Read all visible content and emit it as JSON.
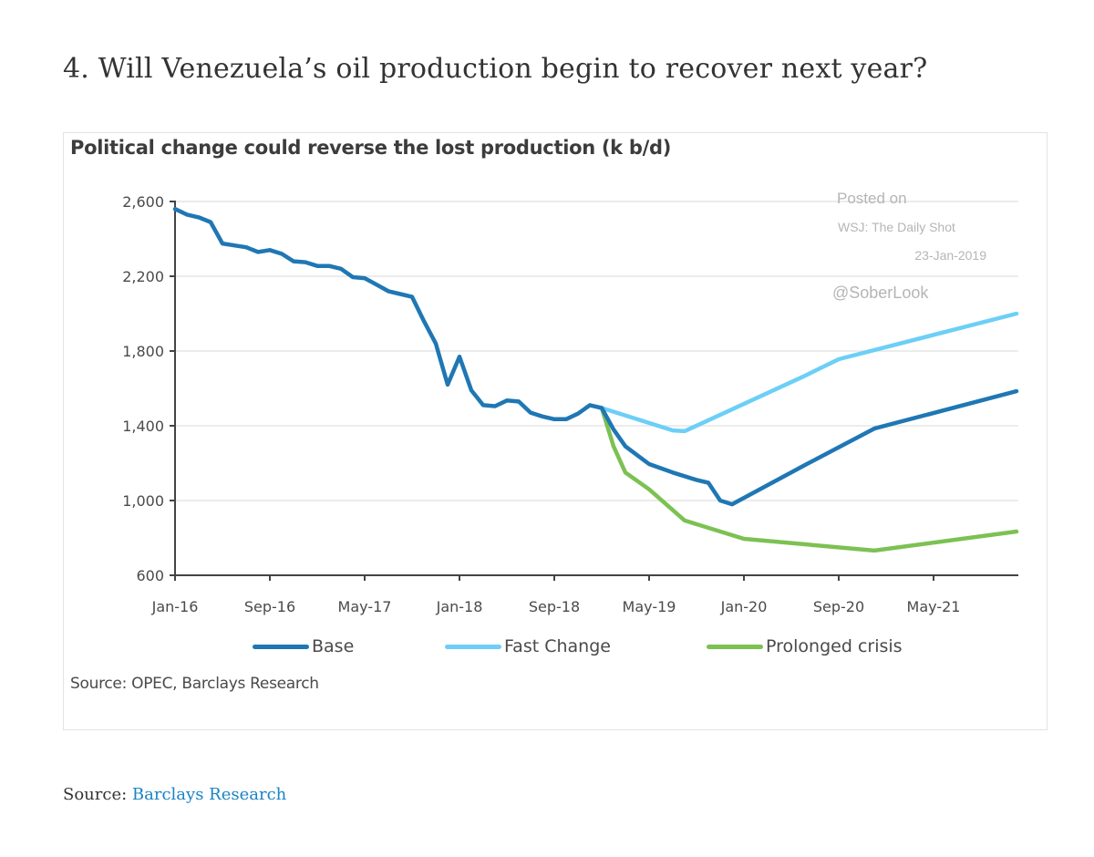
{
  "page": {
    "heading": "4. Will Venezuela’s oil production begin to recover next year?",
    "source_prefix": "Source:",
    "source_link": "Barclays Research"
  },
  "watermark": {
    "line1": "Posted on",
    "line2": "WSJ: The Daily Shot",
    "line3": "23-Jan-2019",
    "line4": "@SoberLook"
  },
  "chart_data": {
    "type": "line",
    "title": "Political change could reverse the lost production (k b/d)",
    "xlabel": "",
    "ylabel": "",
    "source": "Source: OPEC, Barclays Research",
    "x_start": "Jan-16",
    "x_unit": "month",
    "x_range_months": [
      0,
      71
    ],
    "x_ticks": [
      {
        "m": 0,
        "label": "Jan-16"
      },
      {
        "m": 8,
        "label": "Sep-16"
      },
      {
        "m": 16,
        "label": "May-17"
      },
      {
        "m": 24,
        "label": "Jan-18"
      },
      {
        "m": 32,
        "label": "Sep-18"
      },
      {
        "m": 40,
        "label": "May-19"
      },
      {
        "m": 48,
        "label": "Jan-20"
      },
      {
        "m": 56,
        "label": "Sep-20"
      },
      {
        "m": 64,
        "label": "May-21"
      }
    ],
    "ylim": [
      600,
      2600
    ],
    "y_ticks": [
      {
        "v": 600,
        "label": "600"
      },
      {
        "v": 1000,
        "label": "1,000"
      },
      {
        "v": 1400,
        "label": "1,400"
      },
      {
        "v": 1800,
        "label": "1,800"
      },
      {
        "v": 2200,
        "label": "2,200"
      },
      {
        "v": 2600,
        "label": "2,600"
      }
    ],
    "grid": true,
    "legend_position": "bottom",
    "series": [
      {
        "name": "Base",
        "color": "#1f77b4",
        "points": [
          [
            0,
            2560
          ],
          [
            1,
            2530
          ],
          [
            2,
            2515
          ],
          [
            3,
            2490
          ],
          [
            4,
            2375
          ],
          [
            5,
            2365
          ],
          [
            6,
            2355
          ],
          [
            7,
            2330
          ],
          [
            8,
            2340
          ],
          [
            9,
            2320
          ],
          [
            10,
            2280
          ],
          [
            11,
            2275
          ],
          [
            12,
            2255
          ],
          [
            13,
            2255
          ],
          [
            14,
            2240
          ],
          [
            15,
            2195
          ],
          [
            16,
            2190
          ],
          [
            17,
            2155
          ],
          [
            18,
            2120
          ],
          [
            19,
            2105
          ],
          [
            20,
            2090
          ],
          [
            21,
            1960
          ],
          [
            22,
            1840
          ],
          [
            23,
            1620
          ],
          [
            24,
            1770
          ],
          [
            25,
            1590
          ],
          [
            26,
            1510
          ],
          [
            27,
            1505
          ],
          [
            28,
            1535
          ],
          [
            29,
            1530
          ],
          [
            30,
            1470
          ],
          [
            31,
            1450
          ],
          [
            32,
            1435
          ],
          [
            33,
            1435
          ],
          [
            34,
            1465
          ],
          [
            35,
            1510
          ],
          [
            36,
            1495
          ],
          [
            37,
            1380
          ],
          [
            38,
            1290
          ],
          [
            40,
            1195
          ],
          [
            42,
            1150
          ],
          [
            44,
            1110
          ],
          [
            45,
            1095
          ],
          [
            46,
            1000
          ],
          [
            47,
            980
          ],
          [
            53,
            1185
          ],
          [
            59,
            1385
          ],
          [
            71,
            1585
          ]
        ]
      },
      {
        "name": "Fast Change",
        "color": "#6ccff6",
        "points": [
          [
            36,
            1495
          ],
          [
            42,
            1375
          ],
          [
            43,
            1371
          ],
          [
            53,
            1663
          ],
          [
            56,
            1756
          ],
          [
            71,
            2000
          ]
        ]
      },
      {
        "name": "Prolonged crisis",
        "color": "#7cc152",
        "points": [
          [
            36,
            1495
          ],
          [
            37,
            1290
          ],
          [
            38,
            1150
          ],
          [
            40,
            1060
          ],
          [
            43,
            893
          ],
          [
            48,
            795
          ],
          [
            59,
            732
          ],
          [
            71,
            834
          ]
        ]
      }
    ]
  }
}
